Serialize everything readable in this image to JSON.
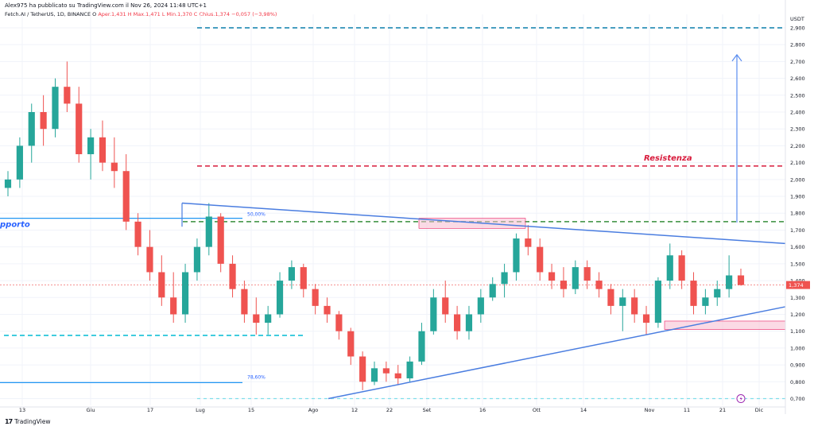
{
  "header": {
    "publisher_text": "Alex975 ha pubblicato su TradingView.com il Nov 26, 2024 11:48 UTC+1",
    "symbol_text": "Fetch.AI / TetherUS, 1D, BINANCE  O",
    "ohlc_text": "Aper.1,431  H  Max.1,471  L  Min.1,370  C  Chius.1,374  −0,057 (−3,98%)"
  },
  "footer": {
    "logo_mark": "17",
    "logo_text": "TradingView"
  },
  "colors": {
    "up": "#26a69a",
    "down": "#ef5350",
    "trendline": "#2962ff",
    "resistance": "#e91e63",
    "support_line": "#2196f3",
    "green_dash": "#388e3c",
    "cyan_dash": "#00bcd4",
    "zone_fill": "#f8bbd0"
  },
  "chart_data": {
    "type": "candlestick",
    "title": "Fetch.AI / TetherUS, 1D, BINANCE",
    "currency_label": "USDT",
    "y_ticks": [
      "2,900",
      "2,800",
      "2,700",
      "2,600",
      "2,500",
      "2,400",
      "2,300",
      "2,200",
      "2,100",
      "2,000",
      "1,900",
      "1,800",
      "1,700",
      "1,600",
      "1,500",
      "1,400",
      "1,300",
      "1,200",
      "1,100",
      "1,000",
      "0,900",
      "0,800",
      "0,700"
    ],
    "y_range": [
      0.66,
      2.98
    ],
    "x_ticks": [
      "13",
      "Giu",
      "17",
      "Lug",
      "15",
      "Ago",
      "12",
      "22",
      "Set",
      "16",
      "Ott",
      "14",
      "Nov",
      "11",
      "21",
      "Dic"
    ],
    "last_price_label": "1,374",
    "candles": [
      [
        1.95,
        2.05,
        1.9,
        2.0
      ],
      [
        2.0,
        2.25,
        1.95,
        2.2
      ],
      [
        2.2,
        2.45,
        2.1,
        2.4
      ],
      [
        2.4,
        2.5,
        2.2,
        2.3
      ],
      [
        2.3,
        2.6,
        2.25,
        2.55
      ],
      [
        2.55,
        2.7,
        2.4,
        2.45
      ],
      [
        2.45,
        2.55,
        2.1,
        2.15
      ],
      [
        2.15,
        2.3,
        2.0,
        2.25
      ],
      [
        2.25,
        2.35,
        2.05,
        2.1
      ],
      [
        2.1,
        2.25,
        1.95,
        2.05
      ],
      [
        2.05,
        2.15,
        1.7,
        1.75
      ],
      [
        1.75,
        1.8,
        1.55,
        1.6
      ],
      [
        1.6,
        1.7,
        1.4,
        1.45
      ],
      [
        1.45,
        1.55,
        1.25,
        1.3
      ],
      [
        1.3,
        1.45,
        1.15,
        1.2
      ],
      [
        1.2,
        1.5,
        1.15,
        1.45
      ],
      [
        1.45,
        1.65,
        1.4,
        1.6
      ],
      [
        1.6,
        1.86,
        1.55,
        1.78
      ],
      [
        1.78,
        1.8,
        1.45,
        1.5
      ],
      [
        1.5,
        1.55,
        1.3,
        1.35
      ],
      [
        1.35,
        1.4,
        1.15,
        1.2
      ],
      [
        1.2,
        1.3,
        1.08,
        1.15
      ],
      [
        1.15,
        1.25,
        1.08,
        1.2
      ],
      [
        1.2,
        1.45,
        1.18,
        1.4
      ],
      [
        1.4,
        1.52,
        1.35,
        1.48
      ],
      [
        1.48,
        1.5,
        1.3,
        1.35
      ],
      [
        1.35,
        1.38,
        1.2,
        1.25
      ],
      [
        1.25,
        1.3,
        1.15,
        1.2
      ],
      [
        1.2,
        1.22,
        1.05,
        1.1
      ],
      [
        1.1,
        1.12,
        0.9,
        0.95
      ],
      [
        0.95,
        0.98,
        0.75,
        0.8
      ],
      [
        0.8,
        0.92,
        0.78,
        0.88
      ],
      [
        0.88,
        0.92,
        0.8,
        0.85
      ],
      [
        0.85,
        0.9,
        0.78,
        0.82
      ],
      [
        0.82,
        0.95,
        0.8,
        0.92
      ],
      [
        0.92,
        1.15,
        0.9,
        1.1
      ],
      [
        1.1,
        1.35,
        1.08,
        1.3
      ],
      [
        1.3,
        1.4,
        1.15,
        1.2
      ],
      [
        1.2,
        1.25,
        1.05,
        1.1
      ],
      [
        1.1,
        1.25,
        1.05,
        1.2
      ],
      [
        1.2,
        1.35,
        1.15,
        1.3
      ],
      [
        1.3,
        1.42,
        1.28,
        1.38
      ],
      [
        1.38,
        1.5,
        1.3,
        1.45
      ],
      [
        1.45,
        1.68,
        1.4,
        1.65
      ],
      [
        1.65,
        1.73,
        1.55,
        1.6
      ],
      [
        1.6,
        1.65,
        1.4,
        1.45
      ],
      [
        1.45,
        1.5,
        1.35,
        1.4
      ],
      [
        1.4,
        1.48,
        1.3,
        1.35
      ],
      [
        1.35,
        1.52,
        1.32,
        1.48
      ],
      [
        1.48,
        1.52,
        1.35,
        1.4
      ],
      [
        1.4,
        1.45,
        1.3,
        1.35
      ],
      [
        1.35,
        1.38,
        1.2,
        1.25
      ],
      [
        1.25,
        1.35,
        1.1,
        1.3
      ],
      [
        1.3,
        1.35,
        1.15,
        1.2
      ],
      [
        1.2,
        1.25,
        1.08,
        1.15
      ],
      [
        1.15,
        1.42,
        1.12,
        1.4
      ],
      [
        1.4,
        1.62,
        1.35,
        1.55
      ],
      [
        1.55,
        1.58,
        1.35,
        1.4
      ],
      [
        1.4,
        1.45,
        1.2,
        1.25
      ],
      [
        1.25,
        1.35,
        1.2,
        1.3
      ],
      [
        1.3,
        1.4,
        1.25,
        1.35
      ],
      [
        1.35,
        1.55,
        1.3,
        1.431
      ],
      [
        1.431,
        1.471,
        1.37,
        1.374
      ]
    ]
  },
  "annotations": {
    "resistance_label": "Resistenza",
    "support_label": "pporto",
    "fib_50_label": "50,00%",
    "fib_786_label": "78,60%"
  }
}
